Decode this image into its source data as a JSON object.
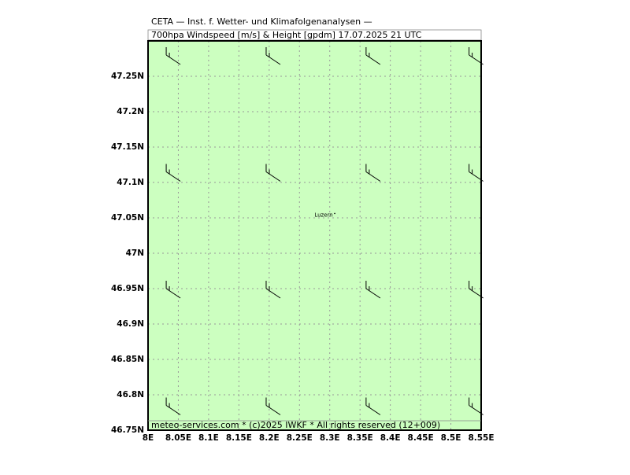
{
  "header": {
    "title": "CETA — Inst. f. Wetter- und Klimafolgenanalysen —",
    "subtitle": "700hpa Windspeed [m/s] & Height [gpdm] 17.07.2025 21 UTC"
  },
  "map": {
    "xlim": [
      8,
      8.55
    ],
    "ylim": [
      46.75,
      47.3
    ],
    "xticks": [
      {
        "value": 8,
        "label": "8E"
      },
      {
        "value": 8.05,
        "label": "8.05E"
      },
      {
        "value": 8.1,
        "label": "8.1E"
      },
      {
        "value": 8.15,
        "label": "8.15E"
      },
      {
        "value": 8.2,
        "label": "8.2E"
      },
      {
        "value": 8.25,
        "label": "8.25E"
      },
      {
        "value": 8.3,
        "label": "8.3E"
      },
      {
        "value": 8.35,
        "label": "8.35E"
      },
      {
        "value": 8.4,
        "label": "8.4E"
      },
      {
        "value": 8.45,
        "label": "8.45E"
      },
      {
        "value": 8.5,
        "label": "8.5E"
      },
      {
        "value": 8.55,
        "label": "8.55E"
      }
    ],
    "yticks": [
      {
        "value": 46.75,
        "label": "46.75N"
      },
      {
        "value": 46.8,
        "label": "46.8N"
      },
      {
        "value": 46.85,
        "label": "46.85N"
      },
      {
        "value": 46.9,
        "label": "46.9N"
      },
      {
        "value": 46.95,
        "label": "46.95N"
      },
      {
        "value": 47,
        "label": "47N"
      },
      {
        "value": 47.05,
        "label": "47.05N"
      },
      {
        "value": 47.1,
        "label": "47.1N"
      },
      {
        "value": 47.15,
        "label": "47.15N"
      },
      {
        "value": 47.2,
        "label": "47.2N"
      },
      {
        "value": 47.25,
        "label": "47.25N"
      }
    ],
    "grid": true,
    "background": "#ccffc0",
    "wind_barbs": {
      "lon": [
        8.03,
        8.195,
        8.36,
        8.53
      ],
      "lat": [
        47.28,
        47.115,
        46.95,
        46.785
      ]
    },
    "place": {
      "name": "Luzern",
      "lon": 8.29,
      "lat": 47.054
    },
    "footer": "meteo-services.com * (c)2025 IWKF * All rights reserved (12+009)"
  }
}
